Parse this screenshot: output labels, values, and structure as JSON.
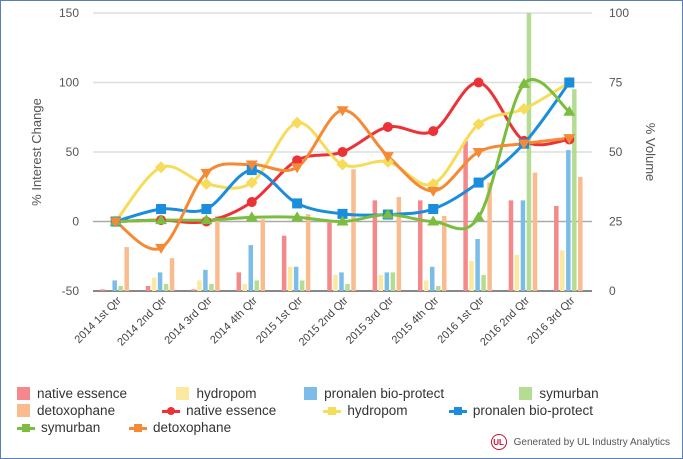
{
  "chart_data": {
    "type": "bar+line",
    "categories": [
      "2014 1st Qtr",
      "2014 2nd Qtr",
      "2014 3rd Qtr",
      "2014 4th Qtr",
      "2015 1st Qtr",
      "2015 2nd Qtr",
      "2015 3rd Qtr",
      "2015 4th Qtr",
      "2016 1st Qtr",
      "2016 2nd Qtr",
      "2016 3rd Qtr"
    ],
    "ylabel": "% Interest Change",
    "y2label": "% Volume",
    "ylim": [
      -50,
      150
    ],
    "yticks": [
      -50,
      0,
      50,
      100,
      150
    ],
    "y2lim": [
      0,
      100
    ],
    "y2ticks": [
      0,
      25,
      50,
      75,
      100
    ],
    "grid": true,
    "legend_position": "bottom",
    "bar_series": [
      {
        "name": "native essence",
        "color": "#f4888a",
        "values": [
          0.6,
          1.8,
          0.6,
          6.7,
          19.9,
          24.6,
          32.6,
          32.6,
          54,
          32.6,
          30.6
        ]
      },
      {
        "name": "hydropom",
        "color": "#fbe9a0",
        "values": [
          0,
          4.8,
          3.8,
          2.5,
          8.7,
          5.8,
          5.8,
          3.8,
          10.8,
          13,
          14.6
        ]
      },
      {
        "name": "pronalen bio-protect",
        "color": "#7bbde9",
        "values": [
          3.8,
          6.7,
          7.6,
          16.5,
          8.7,
          6.7,
          6.7,
          8.7,
          18.7,
          32.6,
          50.7
        ]
      },
      {
        "name": "symurban",
        "color": "#b5dc93",
        "values": [
          1.8,
          2.5,
          2.5,
          3.8,
          3.8,
          2.5,
          6.7,
          1.8,
          5.8,
          100,
          72.6
        ]
      },
      {
        "name": "detoxophane",
        "color": "#f9bc8f",
        "values": [
          15.8,
          11.8,
          27,
          25.8,
          27.6,
          43.8,
          33.8,
          27,
          39,
          42.6,
          41
        ]
      }
    ],
    "line_series": [
      {
        "name": "native essence",
        "color": "#ec3237",
        "marker": "circle",
        "values": [
          0,
          1,
          0,
          14,
          44,
          50,
          68,
          65,
          100,
          58,
          59
        ]
      },
      {
        "name": "hydropom",
        "color": "#f7dc5c",
        "marker": "diamond",
        "values": [
          0,
          39,
          27,
          28,
          71,
          41,
          43,
          27,
          70,
          81,
          100
        ]
      },
      {
        "name": "pronalen bio-protect",
        "color": "#1a8ddc",
        "marker": "square",
        "values": [
          0,
          9,
          9,
          37,
          13,
          5.5,
          5,
          9,
          28,
          56,
          100
        ]
      },
      {
        "name": "symurban",
        "color": "#7cbd3f",
        "marker": "triangle-up",
        "values": [
          0,
          1,
          1,
          3,
          3,
          0,
          5,
          0,
          3,
          99,
          79
        ]
      },
      {
        "name": "detoxophane",
        "color": "#f58a36",
        "marker": "triangle-down",
        "values": [
          0,
          -19,
          35,
          41,
          39,
          80,
          47,
          22,
          50,
          56,
          60
        ]
      }
    ]
  },
  "footer": {
    "text": "Generated by UL Industry Analytics",
    "logo": "UL"
  }
}
